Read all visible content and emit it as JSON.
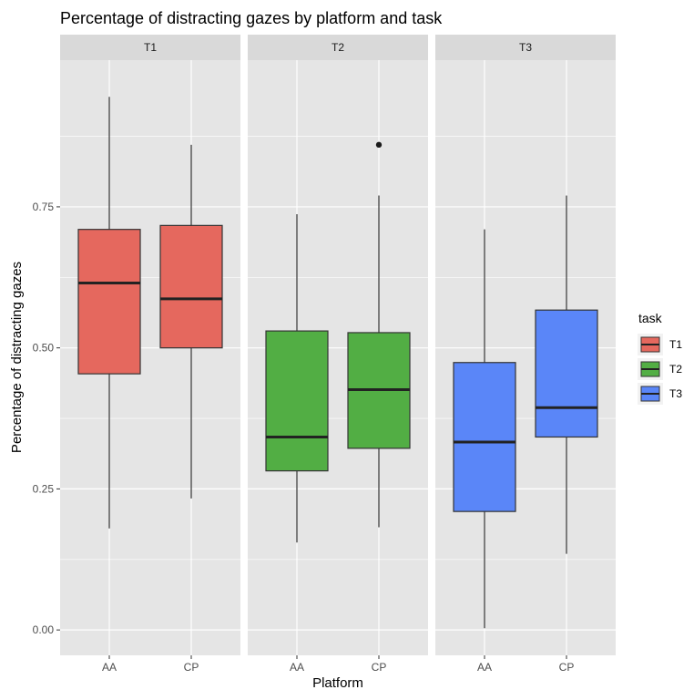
{
  "chart_data": {
    "type": "boxplot",
    "title": "Percentage of distracting gazes by platform and task",
    "xlabel": "Platform",
    "ylabel": "Percentage of distracting gazes",
    "yticks": [
      0,
      0.25,
      0.5,
      0.75
    ],
    "ytick_labels": [
      "0.00",
      "0.25",
      "0.50",
      "0.75"
    ],
    "ylim": [
      -0.045,
      1.01
    ],
    "categories": [
      "AA",
      "CP"
    ],
    "facets": [
      {
        "label": "T1",
        "boxes": [
          {
            "x": "AA",
            "whisker_low": 0.18,
            "q1": 0.454,
            "median": 0.615,
            "q3": 0.71,
            "whisker_high": 0.945,
            "outliers": []
          },
          {
            "x": "CP",
            "whisker_low": 0.233,
            "q1": 0.5,
            "median": 0.587,
            "q3": 0.717,
            "whisker_high": 0.86,
            "outliers": []
          }
        ]
      },
      {
        "label": "T2",
        "boxes": [
          {
            "x": "AA",
            "whisker_low": 0.155,
            "q1": 0.282,
            "median": 0.342,
            "q3": 0.53,
            "whisker_high": 0.737,
            "outliers": []
          },
          {
            "x": "CP",
            "whisker_low": 0.182,
            "q1": 0.322,
            "median": 0.426,
            "q3": 0.527,
            "whisker_high": 0.77,
            "outliers": [
              0.86
            ]
          }
        ]
      },
      {
        "label": "T3",
        "boxes": [
          {
            "x": "AA",
            "whisker_low": 0.003,
            "q1": 0.21,
            "median": 0.333,
            "q3": 0.474,
            "whisker_high": 0.71,
            "outliers": []
          },
          {
            "x": "CP",
            "whisker_low": 0.135,
            "q1": 0.342,
            "median": 0.394,
            "q3": 0.567,
            "whisker_high": 0.77,
            "outliers": []
          }
        ]
      }
    ],
    "legend": {
      "title": "task",
      "position": "right",
      "entries": [
        {
          "label": "T1",
          "color": "#e5685e"
        },
        {
          "label": "T2",
          "color": "#52ae44"
        },
        {
          "label": "T3",
          "color": "#5a86f8"
        }
      ]
    },
    "grid": true,
    "colors": {
      "panel_background": "#e5e5e5",
      "strip_background": "#d9d9d9",
      "grid_line": "#ffffff",
      "box_outline": "#333333"
    }
  }
}
